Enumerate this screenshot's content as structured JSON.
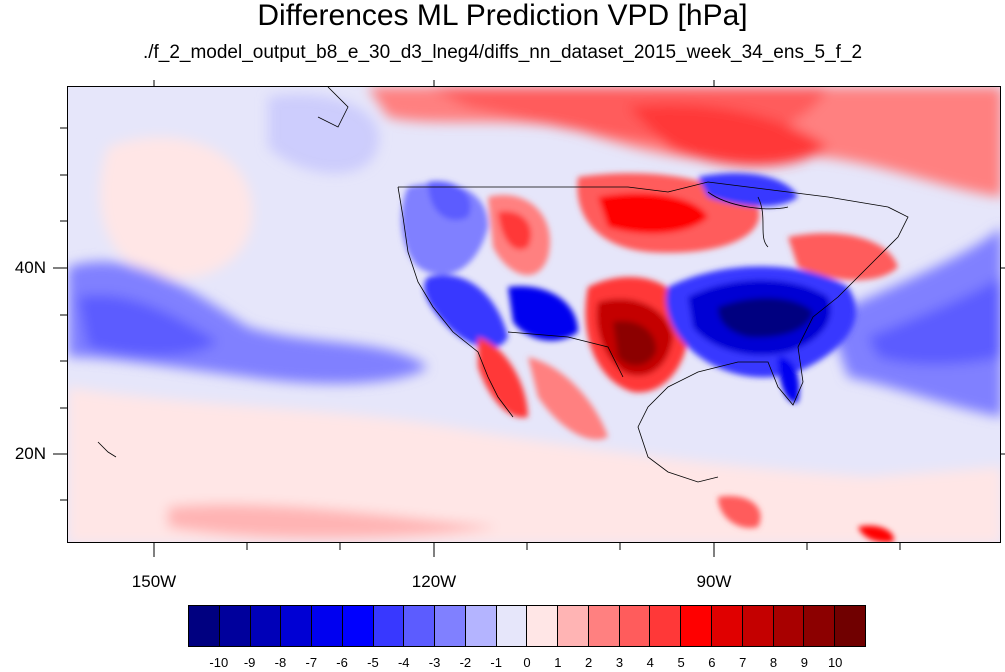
{
  "title": "Differences ML Prediction VPD [hPa]",
  "subtitle": "./f_2_model_output_b8_e_30_d3_lneg4/diffs_nn_dataset_2015_week_34_ens_5_f_2",
  "map": {
    "lat_labels": [
      "40N",
      "20N"
    ],
    "lon_labels": [
      "150W",
      "120W",
      "90W"
    ],
    "background_color": "#e6e6fa"
  },
  "colorbar": {
    "colors": [
      "#000080",
      "#00009c",
      "#0000b8",
      "#0000d4",
      "#0000f0",
      "#0000ff",
      "#3838ff",
      "#5c5cff",
      "#8080ff",
      "#b4b4ff",
      "#e6e6fa",
      "#ffe6e6",
      "#ffb4b4",
      "#ff8080",
      "#ff5c5c",
      "#ff3838",
      "#ff0000",
      "#e00000",
      "#c40000",
      "#a80000",
      "#8c0000",
      "#700000"
    ],
    "labels": [
      "-10",
      "-9",
      "-8",
      "-7",
      "-6",
      "-5",
      "-4",
      "-3",
      "-2",
      "-1",
      "0",
      "1",
      "2",
      "3",
      "4",
      "5",
      "6",
      "7",
      "8",
      "9",
      "10"
    ]
  }
}
